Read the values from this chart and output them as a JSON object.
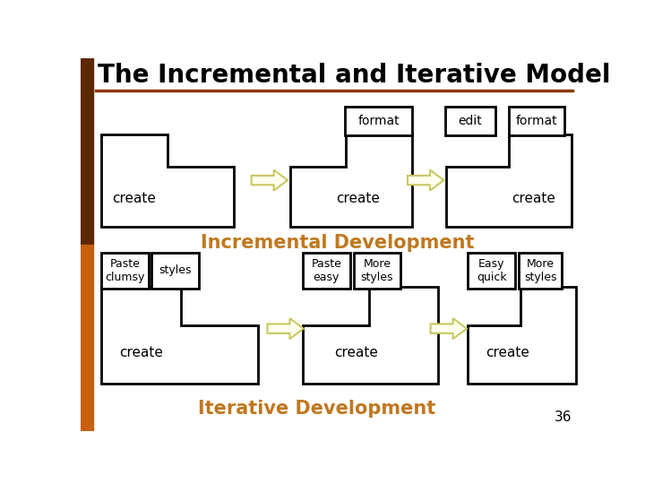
{
  "title": "The Incremental and Iterative Model",
  "title_color": "#000000",
  "title_fontsize": 20,
  "separator_color": "#8B3A0F",
  "bg_color": "#FFFFFF",
  "left_bar_color": "#8B3A0F",
  "left_bar_bottom_color": "#C86010",
  "incremental_label": "Incremental Development",
  "iterative_label": "Iterative Development",
  "orange_color": "#C07820",
  "arrow_fill": "#FFFFF0",
  "arrow_edge": "#C8C860",
  "box_edge": "#000000",
  "page_num": "36",
  "lw": 2.0
}
